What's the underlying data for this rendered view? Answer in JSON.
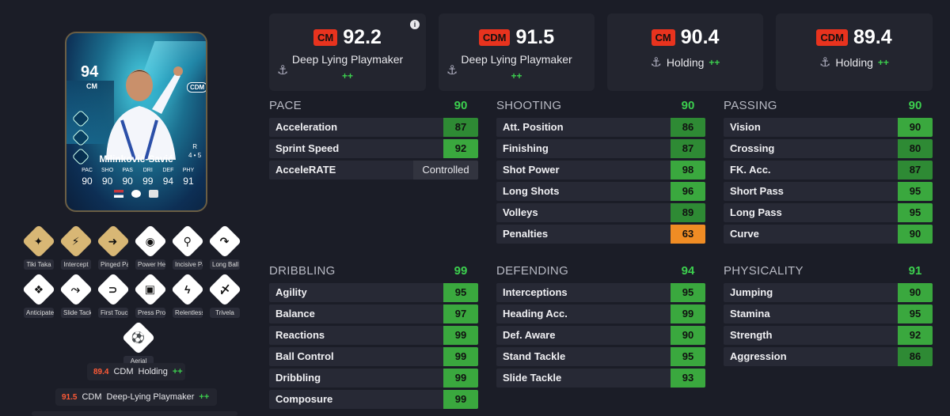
{
  "card": {
    "rating": "94",
    "position": "CM",
    "alt_position": "CDM",
    "name": "Milinković-Savić",
    "skill_label": "R",
    "skill_value": "4 • 5",
    "stat_labels": [
      "PAC",
      "SHO",
      "PAS",
      "DRI",
      "DEF",
      "PHY"
    ],
    "stat_values": [
      "90",
      "90",
      "90",
      "99",
      "94",
      "91"
    ]
  },
  "playstyles": [
    {
      "label": "Tiki Taka",
      "icon": "tiki-taka-icon",
      "gold": true,
      "glyph": "✦"
    },
    {
      "label": "Intercept",
      "icon": "intercept-icon",
      "gold": true,
      "glyph": "⚡"
    },
    {
      "label": "Pinged Pass",
      "icon": "pinged-pass-icon",
      "gold": true,
      "glyph": "➜"
    },
    {
      "label": "Power Header",
      "icon": "power-header-icon",
      "gold": false,
      "glyph": "◉"
    },
    {
      "label": "Incisive Pass",
      "icon": "incisive-pass-icon",
      "gold": false,
      "glyph": "⚲"
    },
    {
      "label": "Long Ball Pass",
      "icon": "long-ball-pass-icon",
      "gold": false,
      "glyph": "↷"
    },
    {
      "label": "Anticipate",
      "icon": "anticipate-icon",
      "gold": false,
      "glyph": "❖"
    },
    {
      "label": "Slide Tackle",
      "icon": "slide-tackle-icon",
      "gold": false,
      "glyph": "⤳"
    },
    {
      "label": "First Touch",
      "icon": "first-touch-icon",
      "gold": false,
      "glyph": "⊃"
    },
    {
      "label": "Press Proven",
      "icon": "press-proven-icon",
      "gold": false,
      "glyph": "▣"
    },
    {
      "label": "Relentless",
      "icon": "relentless-icon",
      "gold": false,
      "glyph": "ϟ"
    },
    {
      "label": "Trivela",
      "icon": "trivela-icon",
      "gold": false,
      "glyph": "〆"
    },
    {
      "label": "Aerial",
      "icon": "aerial-icon",
      "gold": false,
      "glyph": "⚽"
    }
  ],
  "role_chips": [
    {
      "value": "89.4",
      "position": "CDM",
      "role": "Holding",
      "plus": "++"
    },
    {
      "value": "91.5",
      "position": "CDM",
      "role": "Deep-Lying Playmaker",
      "plus": "++"
    }
  ],
  "role_cards": [
    {
      "position": "CM",
      "value": "92.2",
      "role": "Deep Lying Playmaker",
      "plus": "++"
    },
    {
      "position": "CDM",
      "value": "91.5",
      "role": "Deep Lying Playmaker",
      "plus": "++"
    },
    {
      "position": "CM",
      "value": "90.4",
      "role": "Holding",
      "plus": "++"
    },
    {
      "position": "CDM",
      "value": "89.4",
      "role": "Holding",
      "plus": "++"
    }
  ],
  "groups": {
    "pace": {
      "name": "PACE",
      "value": "90",
      "stats": [
        {
          "name": "Acceleration",
          "value": "87"
        },
        {
          "name": "Sprint Speed",
          "value": "92"
        },
        {
          "name": "AcceleRATE",
          "value": "Controlled"
        }
      ]
    },
    "shooting": {
      "name": "SHOOTING",
      "value": "90",
      "stats": [
        {
          "name": "Att. Position",
          "value": "86"
        },
        {
          "name": "Finishing",
          "value": "87"
        },
        {
          "name": "Shot Power",
          "value": "98"
        },
        {
          "name": "Long Shots",
          "value": "96"
        },
        {
          "name": "Volleys",
          "value": "89"
        },
        {
          "name": "Penalties",
          "value": "63"
        }
      ]
    },
    "passing": {
      "name": "PASSING",
      "value": "90",
      "stats": [
        {
          "name": "Vision",
          "value": "90"
        },
        {
          "name": "Crossing",
          "value": "80"
        },
        {
          "name": "FK. Acc.",
          "value": "87"
        },
        {
          "name": "Short Pass",
          "value": "95"
        },
        {
          "name": "Long Pass",
          "value": "95"
        },
        {
          "name": "Curve",
          "value": "90"
        }
      ]
    },
    "dribbling": {
      "name": "DRIBBLING",
      "value": "99",
      "stats": [
        {
          "name": "Agility",
          "value": "95"
        },
        {
          "name": "Balance",
          "value": "97"
        },
        {
          "name": "Reactions",
          "value": "99"
        },
        {
          "name": "Ball Control",
          "value": "99"
        },
        {
          "name": "Dribbling",
          "value": "99"
        },
        {
          "name": "Composure",
          "value": "99"
        }
      ]
    },
    "defending": {
      "name": "DEFENDING",
      "value": "94",
      "stats": [
        {
          "name": "Interceptions",
          "value": "95"
        },
        {
          "name": "Heading Acc.",
          "value": "99"
        },
        {
          "name": "Def. Aware",
          "value": "90"
        },
        {
          "name": "Stand Tackle",
          "value": "95"
        },
        {
          "name": "Slide Tackle",
          "value": "93"
        }
      ]
    },
    "physicality": {
      "name": "PHYSICALITY",
      "value": "91",
      "stats": [
        {
          "name": "Jumping",
          "value": "90"
        },
        {
          "name": "Stamina",
          "value": "95"
        },
        {
          "name": "Strength",
          "value": "92"
        },
        {
          "name": "Aggression",
          "value": "86"
        }
      ]
    }
  },
  "colors": {
    "background": "#1b1d27",
    "panel": "#23252f",
    "stat_high": "#3aa83e",
    "stat_low": "#f08c24",
    "position_badge": "#e8331e",
    "plus": "#3ccf4e"
  }
}
